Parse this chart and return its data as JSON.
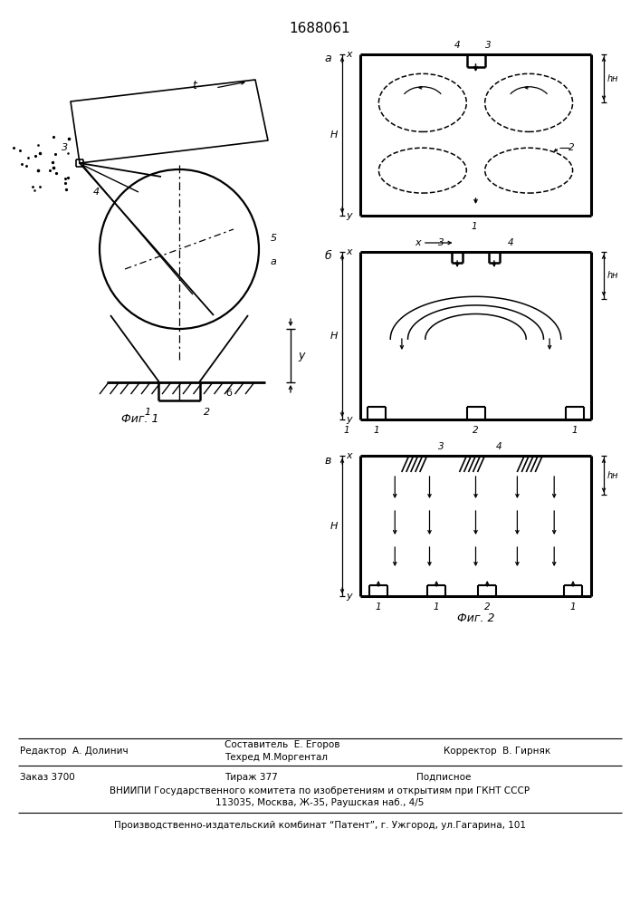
{
  "title": "1688061",
  "bg_color": "#ffffff",
  "fig1_label": "Фиг. 1",
  "fig2_label": "Фиг. 2",
  "bottom_text1": "Редактор  А. Долинич",
  "bottom_text2": "Составитель  Е. Егоров",
  "bottom_text3": "Техред М.Моргентал",
  "bottom_text4": "Корректор  В. Гирняк",
  "bottom_text5": "Заказ 3700",
  "bottom_text6": "Тираж 377",
  "bottom_text7": "Подписное",
  "bottom_text8": "ВНИИПИ Государственного комитета по изобретениям и открытиям при ГКНТ СССР",
  "bottom_text9": "113035, Москва, Ж-35, Раушская наб., 4/5",
  "bottom_text10": "Производственно-издательский комбинат “Патент”, г. Ужгород, ул.Гагарина, 101"
}
